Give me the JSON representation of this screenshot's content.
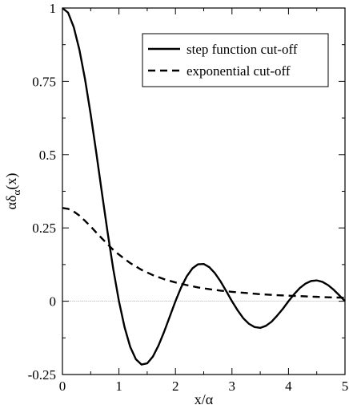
{
  "chart_data": {
    "type": "line",
    "title": "",
    "xlabel": "x/α",
    "ylabel": {
      "base": "αδ",
      "subscript": "α",
      "suffix": "(x)"
    },
    "xlim": [
      0,
      5
    ],
    "ylim": [
      -0.25,
      1
    ],
    "xticks": [
      0,
      1,
      2,
      3,
      4,
      5
    ],
    "xtick_labels": [
      "0",
      "1",
      "2",
      "3",
      "4",
      "5"
    ],
    "yticks": [
      -0.25,
      0,
      0.25,
      0.5,
      0.75,
      1
    ],
    "ytick_labels": [
      "-0.25",
      "0",
      "0.25",
      "0.5",
      "0.75",
      "1"
    ],
    "grid": false,
    "zero_line": true,
    "legend_position": "top-right",
    "series": [
      {
        "name": "step function cut-off",
        "style": "solid",
        "color": "#000000",
        "x": [
          0,
          0.1,
          0.2,
          0.3,
          0.4,
          0.5,
          0.6,
          0.7,
          0.8,
          0.9,
          1.0,
          1.1,
          1.2,
          1.3,
          1.4,
          1.5,
          1.6,
          1.7,
          1.8,
          1.9,
          2.0,
          2.1,
          2.2,
          2.3,
          2.4,
          2.5,
          2.6,
          2.7,
          2.8,
          2.9,
          3.0,
          3.1,
          3.2,
          3.3,
          3.4,
          3.5,
          3.6,
          3.7,
          3.8,
          3.9,
          4.0,
          4.1,
          4.2,
          4.3,
          4.4,
          4.5,
          4.6,
          4.7,
          4.8,
          4.9,
          5.0
        ],
        "y": [
          1.0,
          0.984,
          0.935,
          0.858,
          0.757,
          0.637,
          0.505,
          0.368,
          0.234,
          0.109,
          0.0,
          -0.089,
          -0.156,
          -0.198,
          -0.216,
          -0.212,
          -0.189,
          -0.151,
          -0.104,
          -0.052,
          0.0,
          0.047,
          0.085,
          0.112,
          0.126,
          0.127,
          0.116,
          0.095,
          0.067,
          0.034,
          0.0,
          -0.031,
          -0.058,
          -0.077,
          -0.088,
          -0.091,
          -0.084,
          -0.07,
          -0.049,
          -0.026,
          0.0,
          0.024,
          0.045,
          0.06,
          0.069,
          0.071,
          0.066,
          0.055,
          0.039,
          0.02,
          0.0
        ]
      },
      {
        "name": "exponential cut-off",
        "style": "dashed",
        "color": "#000000",
        "x": [
          0,
          0.1,
          0.2,
          0.3,
          0.4,
          0.5,
          0.6,
          0.7,
          0.8,
          0.9,
          1.0,
          1.2,
          1.4,
          1.6,
          1.8,
          2.0,
          2.2,
          2.4,
          2.6,
          2.8,
          3.0,
          3.25,
          3.5,
          3.75,
          4.0,
          4.25,
          4.5,
          4.75,
          5.0
        ],
        "y": [
          0.318,
          0.315,
          0.306,
          0.292,
          0.274,
          0.255,
          0.234,
          0.214,
          0.194,
          0.175,
          0.159,
          0.13,
          0.107,
          0.089,
          0.075,
          0.064,
          0.055,
          0.047,
          0.041,
          0.036,
          0.032,
          0.028,
          0.024,
          0.021,
          0.019,
          0.017,
          0.015,
          0.013,
          0.012
        ]
      }
    ]
  }
}
